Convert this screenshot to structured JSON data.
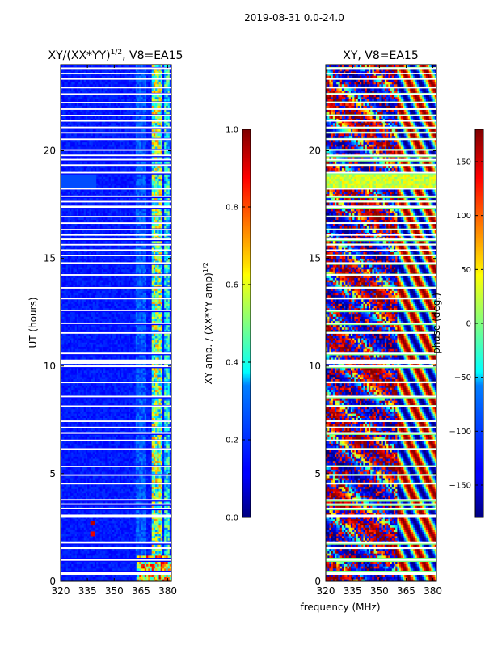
{
  "figure": {
    "suptitle": "2019-08-31 0.0-24.0",
    "shared_xlabel": "frequency (MHz)"
  },
  "chart_data": [
    {
      "type": "heatmap",
      "title_base": "XY/(XX*YY)",
      "title_sup": "1/2",
      "title_suffix": ", V8=EA15",
      "ylabel": "UT (hours)",
      "xlim": [
        320,
        382
      ],
      "ylim": [
        0,
        24
      ],
      "xticks": [
        "320",
        "335",
        "350",
        "365",
        "380"
      ],
      "xtick_values": [
        320,
        335,
        350,
        365,
        380
      ],
      "yticks": [
        "0",
        "5",
        "10",
        "15",
        "20"
      ],
      "ytick_values": [
        0,
        5,
        10,
        15,
        20
      ],
      "colormap": "jet",
      "colorbar": {
        "label_base": "XY amp. / (XX*YY amp)",
        "label_sup": "1/2",
        "range": [
          0.0,
          1.0
        ],
        "ticks": [
          "0.0",
          "0.2",
          "0.4",
          "0.6",
          "0.8",
          "1.0"
        ],
        "tick_values": [
          0.0,
          0.2,
          0.4,
          0.6,
          0.8,
          1.0
        ]
      }
    },
    {
      "type": "heatmap",
      "title": "XY, V8=EA15",
      "xlim": [
        320,
        382
      ],
      "ylim": [
        0,
        24
      ],
      "xticks": [
        "320",
        "335",
        "350",
        "365",
        "380"
      ],
      "xtick_values": [
        320,
        335,
        350,
        365,
        380
      ],
      "yticks": [
        "0",
        "5",
        "10",
        "15",
        "20"
      ],
      "ytick_values": [
        0,
        5,
        10,
        15,
        20
      ],
      "colormap": "jet",
      "colorbar": {
        "label": "phase (deg.)",
        "range": [
          -180,
          180
        ],
        "ticks": [
          "150",
          "100",
          "50",
          "0",
          "−50",
          "−100",
          "−150"
        ],
        "tick_values": [
          150,
          100,
          50,
          0,
          -50,
          -100,
          -150
        ]
      }
    }
  ],
  "gaps_hours": [
    [
      0.3,
      0.45
    ],
    [
      0.95,
      1.05
    ],
    [
      1.5,
      1.6
    ],
    [
      1.75,
      1.85
    ],
    [
      2.95,
      3.1
    ],
    [
      3.35,
      3.42
    ],
    [
      3.55,
      3.62
    ],
    [
      3.75,
      3.82
    ],
    [
      4.5,
      4.58
    ],
    [
      4.9,
      4.97
    ],
    [
      5.3,
      5.37
    ],
    [
      6.1,
      6.18
    ],
    [
      6.5,
      6.58
    ],
    [
      6.85,
      6.93
    ],
    [
      7.1,
      7.18
    ],
    [
      7.4,
      7.47
    ],
    [
      8.1,
      8.17
    ],
    [
      8.55,
      8.62
    ],
    [
      9.2,
      9.27
    ],
    [
      9.95,
      10.05
    ],
    [
      10.1,
      10.3
    ],
    [
      10.55,
      10.62
    ],
    [
      11.5,
      11.57
    ],
    [
      11.95,
      12.02
    ],
    [
      12.55,
      12.62
    ],
    [
      13.1,
      13.17
    ],
    [
      13.6,
      13.67
    ],
    [
      14.2,
      14.27
    ],
    [
      14.75,
      14.82
    ],
    [
      15.1,
      15.17
    ],
    [
      15.35,
      15.42
    ],
    [
      15.6,
      15.67
    ],
    [
      15.85,
      15.92
    ],
    [
      16.05,
      16.12
    ],
    [
      16.3,
      16.37
    ],
    [
      16.6,
      16.67
    ],
    [
      16.9,
      16.97
    ],
    [
      17.35,
      17.45
    ],
    [
      17.6,
      17.67
    ],
    [
      17.85,
      17.92
    ],
    [
      18.2,
      18.27
    ],
    [
      18.95,
      19.02
    ],
    [
      19.3,
      19.37
    ],
    [
      19.55,
      19.62
    ],
    [
      19.75,
      19.82
    ],
    [
      20.0,
      20.07
    ],
    [
      20.5,
      20.57
    ],
    [
      20.8,
      20.87
    ],
    [
      21.05,
      21.12
    ],
    [
      21.35,
      21.42
    ],
    [
      21.6,
      21.67
    ],
    [
      21.9,
      21.97
    ],
    [
      22.2,
      22.27
    ],
    [
      22.6,
      22.67
    ],
    [
      22.9,
      22.97
    ],
    [
      23.3,
      23.37
    ],
    [
      23.55,
      23.62
    ],
    [
      23.8,
      23.87
    ]
  ],
  "bright_columns_mhz": [
    374.5,
    379.5
  ],
  "rfi_pixels": [
    {
      "mhz": 338,
      "ut": 2.7,
      "amp": 0.95
    },
    {
      "mhz": 338,
      "ut": 2.2,
      "amp": 0.9
    }
  ]
}
